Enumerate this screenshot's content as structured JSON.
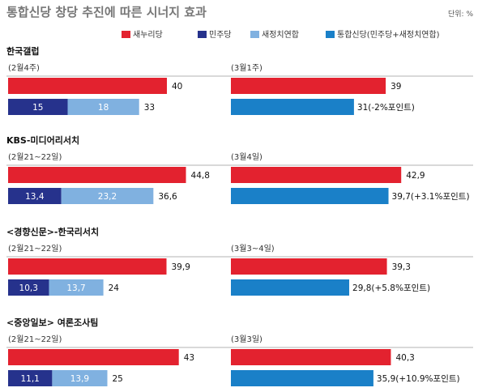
{
  "title": "통합신당 창당 추진에 따른 시너지 효과",
  "unit_label": "단위: %",
  "colors": {
    "saenuri": "#e3222f",
    "minju": "#26328c",
    "saejeongchi": "#80b1e0",
    "tonghap": "#1a80c8"
  },
  "chart_data": {
    "type": "bar",
    "title": "통합신당 창당 추진에 따른 시너지 효과",
    "unit": "단위: %",
    "legend": [
      {
        "key": "saenuri",
        "label": "새누리당"
      },
      {
        "key": "minju",
        "label": "민주당"
      },
      {
        "key": "saejeongchi",
        "label": "새정치연합"
      },
      {
        "key": "tonghap",
        "label": "통합신당(민주당+새정치연합)"
      }
    ],
    "legend_position": "top-right",
    "polls": [
      {
        "name": "한국갤럽",
        "before": {
          "period": "(2월4주)",
          "saenuri": 40,
          "minju": 15,
          "saejeongchi": 18,
          "total": 33
        },
        "after": {
          "period": "(3월1주)",
          "saenuri": 39,
          "tonghap": 31,
          "change": "(-2%포인트)"
        }
      },
      {
        "name": "KBS-미디어리서치",
        "before": {
          "period": "(2월21~22일)",
          "saenuri": 44.8,
          "minju": 13.4,
          "saejeongchi": 23.2,
          "total": 36.6
        },
        "after": {
          "period": "(3월4일)",
          "saenuri": 42.9,
          "tonghap": 39.7,
          "change": "(+3.1%포인트)"
        }
      },
      {
        "name": "<경향신문>-한국리서치",
        "before": {
          "period": "(2월21~22일)",
          "saenuri": 39.9,
          "minju": 10.3,
          "saejeongchi": 13.7,
          "total": 24
        },
        "after": {
          "period": "(3월3~4일)",
          "saenuri": 39.3,
          "tonghap": 29.8,
          "change": "(+5.8%포인트)"
        }
      },
      {
        "name": "<중앙일보> 여론조사팀",
        "before": {
          "period": "(2월21~22일)",
          "saenuri": 43,
          "minju": 11.1,
          "saejeongchi": 13.9,
          "total": 25
        },
        "after": {
          "period": "(3월3일)",
          "saenuri": 40.3,
          "tonghap": 35.9,
          "change": "(+10.9%포인트)"
        }
      }
    ]
  }
}
